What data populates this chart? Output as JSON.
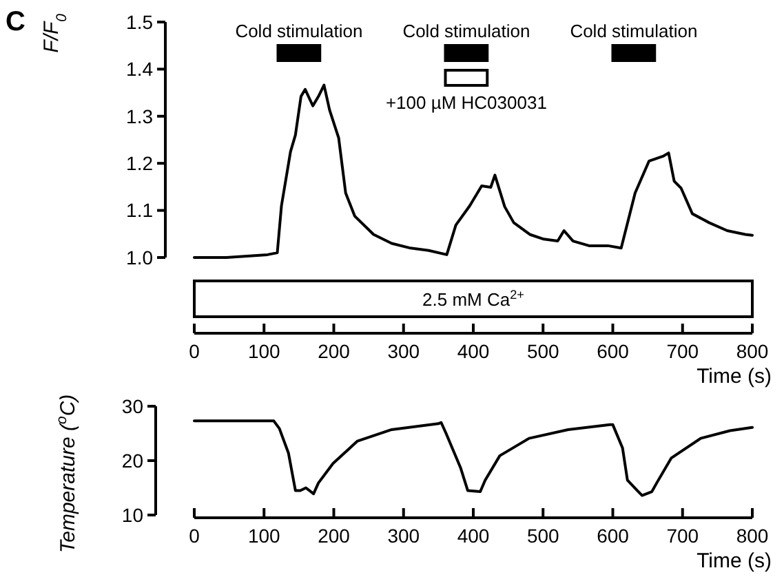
{
  "chart_data": [
    {
      "type": "line",
      "ylabel": "F/F$_{0}$",
      "xlabel": "Time (s)",
      "annotations": [
        "C"
      ],
      "xlim": [
        0,
        800
      ],
      "xticks": [
        0,
        100,
        200,
        300,
        400,
        500,
        600,
        700,
        800
      ],
      "ylim": [
        1.0,
        1.5
      ],
      "yticks": [
        {
          "value": 1.0,
          "label": "1.0"
        },
        {
          "value": 1.1,
          "label": "1.1"
        },
        {
          "value": 1.2,
          "label": "1.2"
        },
        {
          "value": 1.3,
          "label": "1.3"
        },
        {
          "value": 1.4,
          "label": "1.4"
        },
        {
          "value": 1.5,
          "label": "1.5"
        }
      ],
      "grid": false,
      "bands": [
        {
          "axis": "x",
          "from": 120,
          "to": 180,
          "label": "Cold stimulation",
          "color": "#000000"
        },
        {
          "axis": "x",
          "from": 360,
          "to": 420,
          "label": "Cold stimulation",
          "color": "#000000"
        },
        {
          "axis": "x",
          "from": 600,
          "to": 660,
          "label": "Cold stimulation",
          "color": "#000000"
        },
        {
          "axis": "x",
          "from": 360,
          "to": 420,
          "label": "+100 µM HC030031",
          "color": "#ffffff"
        },
        {
          "axis": "x",
          "from": 0,
          "to": 800,
          "label": "2.5 mM Ca$^{2+}$",
          "color": "#ffffff"
        }
      ],
      "series": [
        {
          "color": "#000000",
          "x": [
            0,
            46,
            105,
            119,
            125,
            138,
            145,
            153,
            159,
            170,
            178,
            186,
            194,
            207,
            217,
            230,
            257,
            283,
            310,
            336,
            362,
            375,
            395,
            412,
            425,
            431,
            445,
            458,
            481,
            501,
            521,
            530,
            543,
            566,
            593,
            612,
            632,
            652,
            662,
            672,
            680,
            688,
            698,
            714,
            738,
            764,
            790,
            800
          ],
          "values": [
            1.0,
            1.0,
            1.006,
            1.01,
            1.11,
            1.225,
            1.26,
            1.342,
            1.357,
            1.322,
            1.342,
            1.366,
            1.313,
            1.254,
            1.137,
            1.088,
            1.049,
            1.03,
            1.02,
            1.015,
            1.006,
            1.069,
            1.11,
            1.152,
            1.149,
            1.175,
            1.108,
            1.074,
            1.049,
            1.039,
            1.035,
            1.057,
            1.035,
            1.025,
            1.025,
            1.02,
            1.137,
            1.205,
            1.21,
            1.215,
            1.222,
            1.162,
            1.147,
            1.093,
            1.074,
            1.057,
            1.049,
            1.047
          ]
        }
      ]
    },
    {
      "type": "line",
      "ylabel": "Temperature ($^{o}$C)",
      "xlabel": "Time (s)",
      "xlim": [
        0,
        800
      ],
      "xticks": [
        0,
        100,
        200,
        300,
        400,
        500,
        600,
        700,
        800
      ],
      "ylim": [
        10,
        30
      ],
      "yticks": [
        10,
        20,
        30
      ],
      "grid": false,
      "series": [
        {
          "color": "#000000",
          "x": [
            0,
            114,
            122,
            135,
            145,
            152,
            160,
            171,
            178,
            199,
            234,
            283,
            350,
            354,
            361,
            382,
            392,
            410,
            417,
            438,
            480,
            536,
            596,
            600,
            614,
            621,
            635,
            642,
            656,
            663,
            684,
            726,
            768,
            800
          ],
          "values": [
            27.3,
            27.3,
            25.9,
            21.4,
            14.5,
            14.5,
            15,
            13.9,
            15.9,
            19.5,
            23.6,
            25.7,
            26.8,
            27,
            25,
            18.6,
            14.5,
            14.3,
            16.4,
            20.9,
            24.1,
            25.7,
            26.6,
            26.6,
            22.3,
            16.4,
            14.5,
            13.6,
            14.3,
            15.9,
            20.5,
            24.1,
            25.5,
            26.1
          ]
        }
      ]
    }
  ]
}
